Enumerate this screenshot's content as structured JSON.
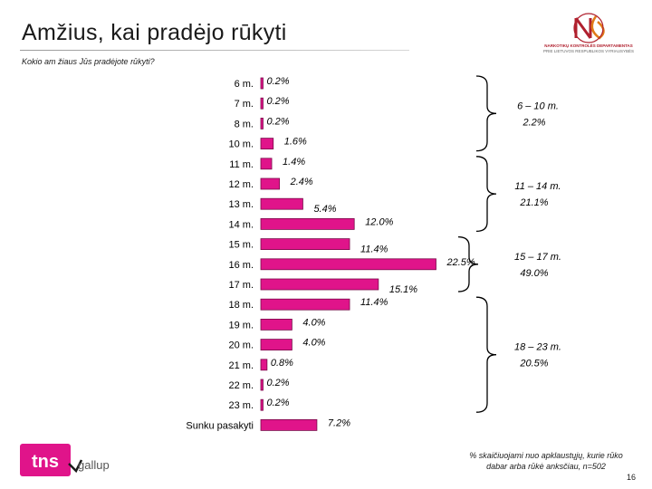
{
  "title": "Amžius, kai pradėjo rūkyti",
  "question": "Kokio am žiaus Jūs pradėjote rūkyti?",
  "org": {
    "line1": "NARKOTIKŲ KONTROLĖS DEPARTAMENTAS",
    "line2": "PRIE LIETUVOS RESPUBLIKOS VYRIAUSYBĖS"
  },
  "tns": {
    "brand": "tns",
    "sub": "gallup"
  },
  "footnote": "% skaičiuojami nuo apklaustųjų, kurie rūko dabar arba rūkė anksčiau, n=502",
  "page_number": "16",
  "colors": {
    "bar": "#e0148a",
    "bar_stroke": "#7a0a4a",
    "brace": "#000000",
    "tns_box": "#e0148a",
    "tns_sub": "#555555"
  },
  "chart_data": {
    "type": "bar",
    "orientation": "horizontal",
    "unit": "%",
    "xlim": [
      0,
      25
    ],
    "grid": false,
    "categories": [
      "6 m.",
      "7 m.",
      "8 m.",
      "10 m.",
      "11 m.",
      "12 m.",
      "13 m.",
      "14 m.",
      "15 m.",
      "16 m.",
      "17 m.",
      "18 m.",
      "19 m.",
      "20 m.",
      "21 m.",
      "22 m.",
      "23 m.",
      "Sunku pasakyti"
    ],
    "values": [
      0.2,
      0.2,
      0.2,
      1.6,
      1.4,
      2.4,
      5.4,
      12.0,
      11.4,
      22.5,
      15.1,
      11.4,
      4.0,
      4.0,
      0.8,
      0.2,
      0.2,
      7.2
    ],
    "labels": [
      "0.2%",
      "0.2%",
      "0.2%",
      "1.6%",
      "1.4%",
      "2.4%",
      "5.4%",
      "12.0%",
      "11.4%",
      "22.5%",
      "15.1%",
      "11.4%",
      "4.0%",
      "4.0%",
      "0.8%",
      "0.2%",
      "0.2%",
      "7.2%"
    ],
    "groups": [
      {
        "label": "6 – 10 m.",
        "value": "2.2%",
        "from": 0,
        "to": 3
      },
      {
        "label": "11 – 14 m.",
        "value": "21.1%",
        "from": 4,
        "to": 7
      },
      {
        "label": "15 – 17 m.",
        "value": "49.0%",
        "from": 8,
        "to": 10
      },
      {
        "label": "18 – 23 m.",
        "value": "20.5%",
        "from": 11,
        "to": 16
      }
    ]
  }
}
